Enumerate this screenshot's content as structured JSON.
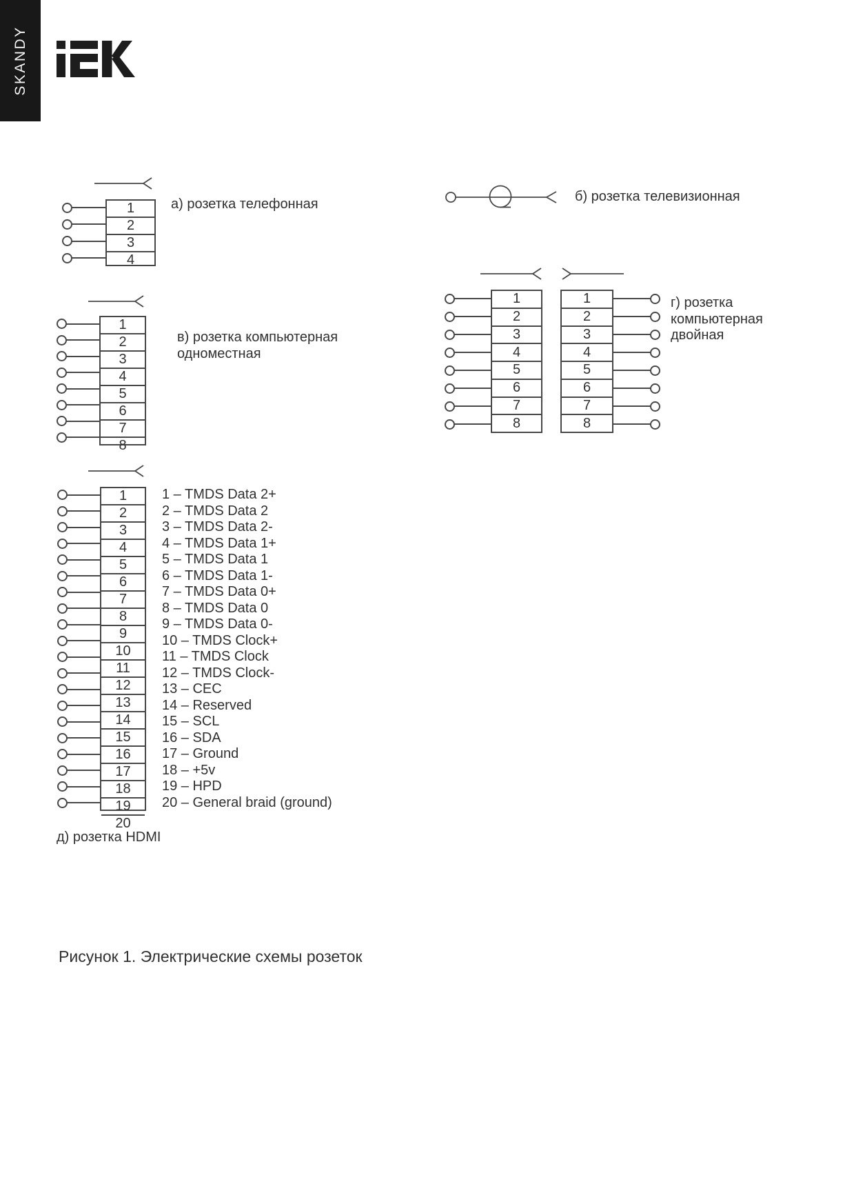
{
  "sidebar": {
    "brand": "SKANDY"
  },
  "logo": {
    "alt": "IEK"
  },
  "figure": {
    "caption": "Рисунок 1. Электрические схемы розеток"
  },
  "colors": {
    "ink": "#474747",
    "text": "#303030",
    "sidebar_bg": "#181818",
    "logo_fill": "#1d1d1d",
    "page_bg": "#ffffff"
  },
  "diagrams": [
    {
      "id": "a",
      "kind": "pin-box",
      "label_lines": [
        "а) розетка телефонная"
      ],
      "pins": [
        "1",
        "2",
        "3",
        "4"
      ]
    },
    {
      "id": "b",
      "kind": "tv-symbol",
      "label_lines": [
        "б) розетка телевизионная"
      ]
    },
    {
      "id": "v",
      "kind": "pin-box",
      "label_lines": [
        "в) розетка компьютерная",
        "одноместная"
      ],
      "pins": [
        "1",
        "2",
        "3",
        "4",
        "5",
        "6",
        "7",
        "8"
      ]
    },
    {
      "id": "g",
      "kind": "pin-box-double",
      "label_lines": [
        "г) розетка",
        "компьютерная",
        "двойная"
      ],
      "pins_left": [
        "1",
        "2",
        "3",
        "4",
        "5",
        "6",
        "7",
        "8"
      ],
      "pins_right": [
        "1",
        "2",
        "3",
        "4",
        "5",
        "6",
        "7",
        "8"
      ]
    },
    {
      "id": "d",
      "kind": "pin-box",
      "label_lines": [
        "д) розетка HDMI"
      ],
      "pins": [
        "1",
        "2",
        "3",
        "4",
        "5",
        "6",
        "7",
        "8",
        "9",
        "10",
        "11",
        "12",
        "13",
        "14",
        "15",
        "16",
        "17",
        "18",
        "19",
        "20"
      ],
      "pin_names": [
        "1 – TMDS Data 2+",
        "2 – TMDS Data 2",
        "3 – TMDS Data 2-",
        "4 – TMDS Data 1+",
        "5 – TMDS Data 1",
        "6 – TMDS Data 1-",
        "7 – TMDS Data 0+",
        "8 – TMDS Data 0",
        "9 – TMDS Data 0-",
        "10 – TMDS Clock+",
        "11 – TMDS Clock",
        "12 – TMDS Clock-",
        "13 – CEC",
        "14 – Reserved",
        "15 – SCL",
        "16 – SDA",
        "17 – Ground",
        "18 – +5v",
        "19 – HPD",
        "20 – General braid (ground)"
      ]
    }
  ]
}
